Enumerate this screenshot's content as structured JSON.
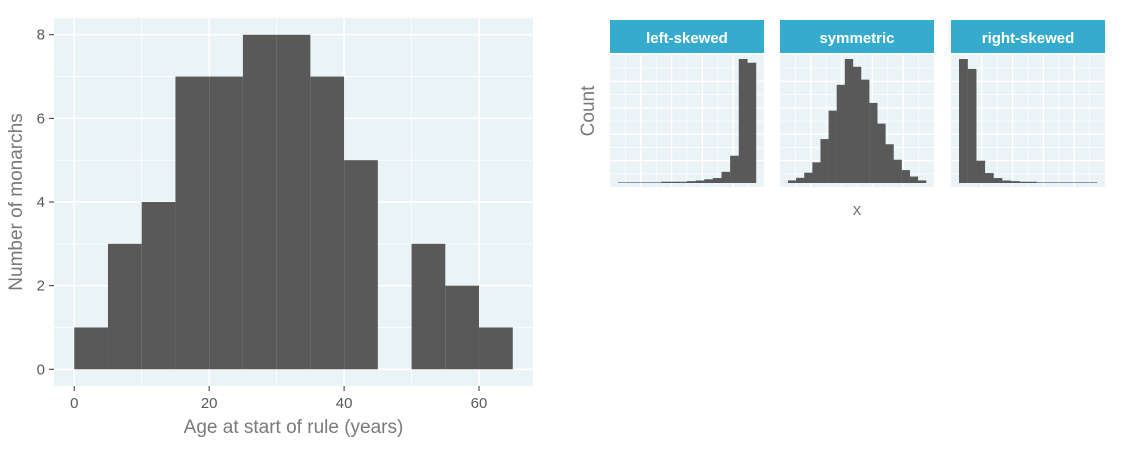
{
  "colors": {
    "panel_background": "#eaf3f6",
    "grid": "#ffffff",
    "bar_fill": "#595959",
    "strip_fill": "#35abcd",
    "strip_text": "#ffffff",
    "axis_text": "#595959",
    "title_text": "#7a7a7a"
  },
  "chart_data": [
    {
      "type": "bar",
      "subtype": "histogram",
      "xlabel": "Age at start of rule (years)",
      "ylabel": "Number of monarchs",
      "xlim": [
        -3,
        68
      ],
      "ylim": [
        -0.4,
        8.4
      ],
      "x_ticks": [
        0,
        20,
        40,
        60
      ],
      "y_ticks": [
        0,
        2,
        4,
        6,
        8
      ],
      "bin_width": 5,
      "bins": [
        {
          "start": 0,
          "end": 5,
          "count": 1
        },
        {
          "start": 5,
          "end": 10,
          "count": 3
        },
        {
          "start": 10,
          "end": 15,
          "count": 4
        },
        {
          "start": 15,
          "end": 20,
          "count": 7
        },
        {
          "start": 20,
          "end": 25,
          "count": 7
        },
        {
          "start": 25,
          "end": 30,
          "count": 8
        },
        {
          "start": 30,
          "end": 35,
          "count": 8
        },
        {
          "start": 35,
          "end": 40,
          "count": 7
        },
        {
          "start": 40,
          "end": 45,
          "count": 5
        },
        {
          "start": 45,
          "end": 50,
          "count": 0
        },
        {
          "start": 50,
          "end": 55,
          "count": 3
        },
        {
          "start": 55,
          "end": 60,
          "count": 2
        },
        {
          "start": 60,
          "end": 65,
          "count": 1
        }
      ],
      "grid": true
    },
    {
      "type": "bar",
      "subtype": "faceted-histogram",
      "xlabel": "x",
      "ylabel": "Count",
      "grid": true,
      "facets": [
        {
          "label": "left-skewed",
          "values": [
            0,
            0.5,
            0.5,
            0.5,
            0.5,
            1,
            1,
            1,
            1.5,
            2,
            3,
            4,
            9,
            22,
            100,
            97
          ]
        },
        {
          "label": "symmetric",
          "values": [
            2,
            4,
            8,
            16,
            34,
            56,
            76,
            96,
            90,
            80,
            62,
            46,
            30,
            18,
            10,
            5,
            2
          ]
        },
        {
          "label": "right-skewed",
          "values": [
            100,
            92,
            18,
            8,
            4,
            2,
            1.5,
            1,
            1,
            0.5,
            0.5,
            0.5,
            0.5,
            0,
            0,
            0
          ]
        }
      ]
    }
  ]
}
